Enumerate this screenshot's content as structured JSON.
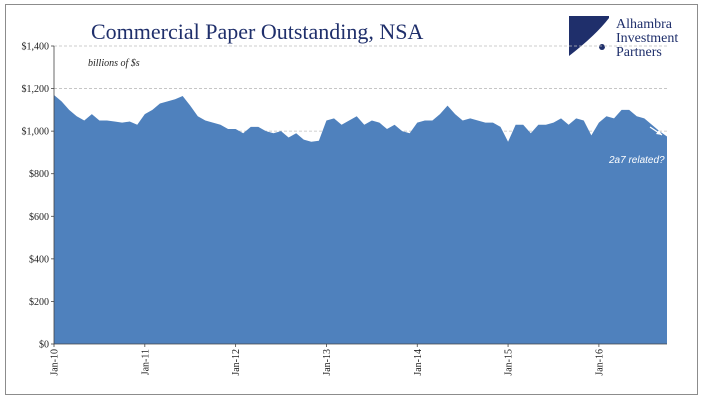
{
  "chart_data": {
    "type": "area",
    "title": "Commercial Paper Outstanding, NSA",
    "unit_label": "billions of $s",
    "annotation": "2a7 related?",
    "colors": {
      "area": "#4f81bd",
      "title": "#1f2f6b",
      "grid": "#bfbfbf"
    },
    "grid": true,
    "ylim": [
      0,
      1400
    ],
    "yticks": [
      0,
      200,
      400,
      600,
      800,
      1000,
      1200,
      1400
    ],
    "ytick_labels": [
      "$0",
      "$200",
      "$400",
      "$600",
      "$800",
      "$1,000",
      "$1,200",
      "$1,400"
    ],
    "xtick_labels": [
      "Jan-10",
      "Jan-11",
      "Jan-12",
      "Jan-13",
      "Jan-14",
      "Jan-15",
      "Jan-16"
    ],
    "x": [
      "Jan-10",
      "Feb-10",
      "Mar-10",
      "Apr-10",
      "May-10",
      "Jun-10",
      "Jul-10",
      "Aug-10",
      "Sep-10",
      "Oct-10",
      "Nov-10",
      "Dec-10",
      "Jan-11",
      "Feb-11",
      "Mar-11",
      "Apr-11",
      "May-11",
      "Jun-11",
      "Jul-11",
      "Aug-11",
      "Sep-11",
      "Oct-11",
      "Nov-11",
      "Dec-11",
      "Jan-12",
      "Feb-12",
      "Mar-12",
      "Apr-12",
      "May-12",
      "Jun-12",
      "Jul-12",
      "Aug-12",
      "Sep-12",
      "Oct-12",
      "Nov-12",
      "Dec-12",
      "Jan-13",
      "Feb-13",
      "Mar-13",
      "Apr-13",
      "May-13",
      "Jun-13",
      "Jul-13",
      "Aug-13",
      "Sep-13",
      "Oct-13",
      "Nov-13",
      "Dec-13",
      "Jan-14",
      "Feb-14",
      "Mar-14",
      "Apr-14",
      "May-14",
      "Jun-14",
      "Jul-14",
      "Aug-14",
      "Sep-14",
      "Oct-14",
      "Nov-14",
      "Dec-14",
      "Jan-15",
      "Feb-15",
      "Mar-15",
      "Apr-15",
      "May-15",
      "Jun-15",
      "Jul-15",
      "Aug-15",
      "Sep-15",
      "Oct-15",
      "Nov-15",
      "Dec-15",
      "Jan-16",
      "Feb-16",
      "Mar-16",
      "Apr-16",
      "May-16",
      "Jun-16",
      "Jul-16",
      "Aug-16",
      "Sep-16",
      "Oct-16"
    ],
    "series": [
      {
        "values": [
          1170,
          1140,
          1100,
          1070,
          1050,
          1080,
          1050,
          1050,
          1045,
          1040,
          1045,
          1030,
          1080,
          1100,
          1130,
          1140,
          1150,
          1165,
          1120,
          1070,
          1050,
          1040,
          1030,
          1010,
          1010,
          990,
          1020,
          1020,
          1000,
          990,
          1000,
          970,
          990,
          960,
          950,
          955,
          1050,
          1060,
          1030,
          1050,
          1070,
          1030,
          1050,
          1040,
          1010,
          1030,
          1000,
          990,
          1040,
          1050,
          1050,
          1080,
          1120,
          1080,
          1050,
          1060,
          1050,
          1040,
          1040,
          1020,
          950,
          1030,
          1030,
          990,
          1030,
          1030,
          1040,
          1060,
          1030,
          1060,
          1050,
          980,
          1040,
          1070,
          1060,
          1100,
          1100,
          1070,
          1060,
          1030,
          1000,
          975
        ]
      }
    ]
  },
  "brand": {
    "line1": "Alhambra",
    "line2": "Investment",
    "line3": "Partners"
  }
}
